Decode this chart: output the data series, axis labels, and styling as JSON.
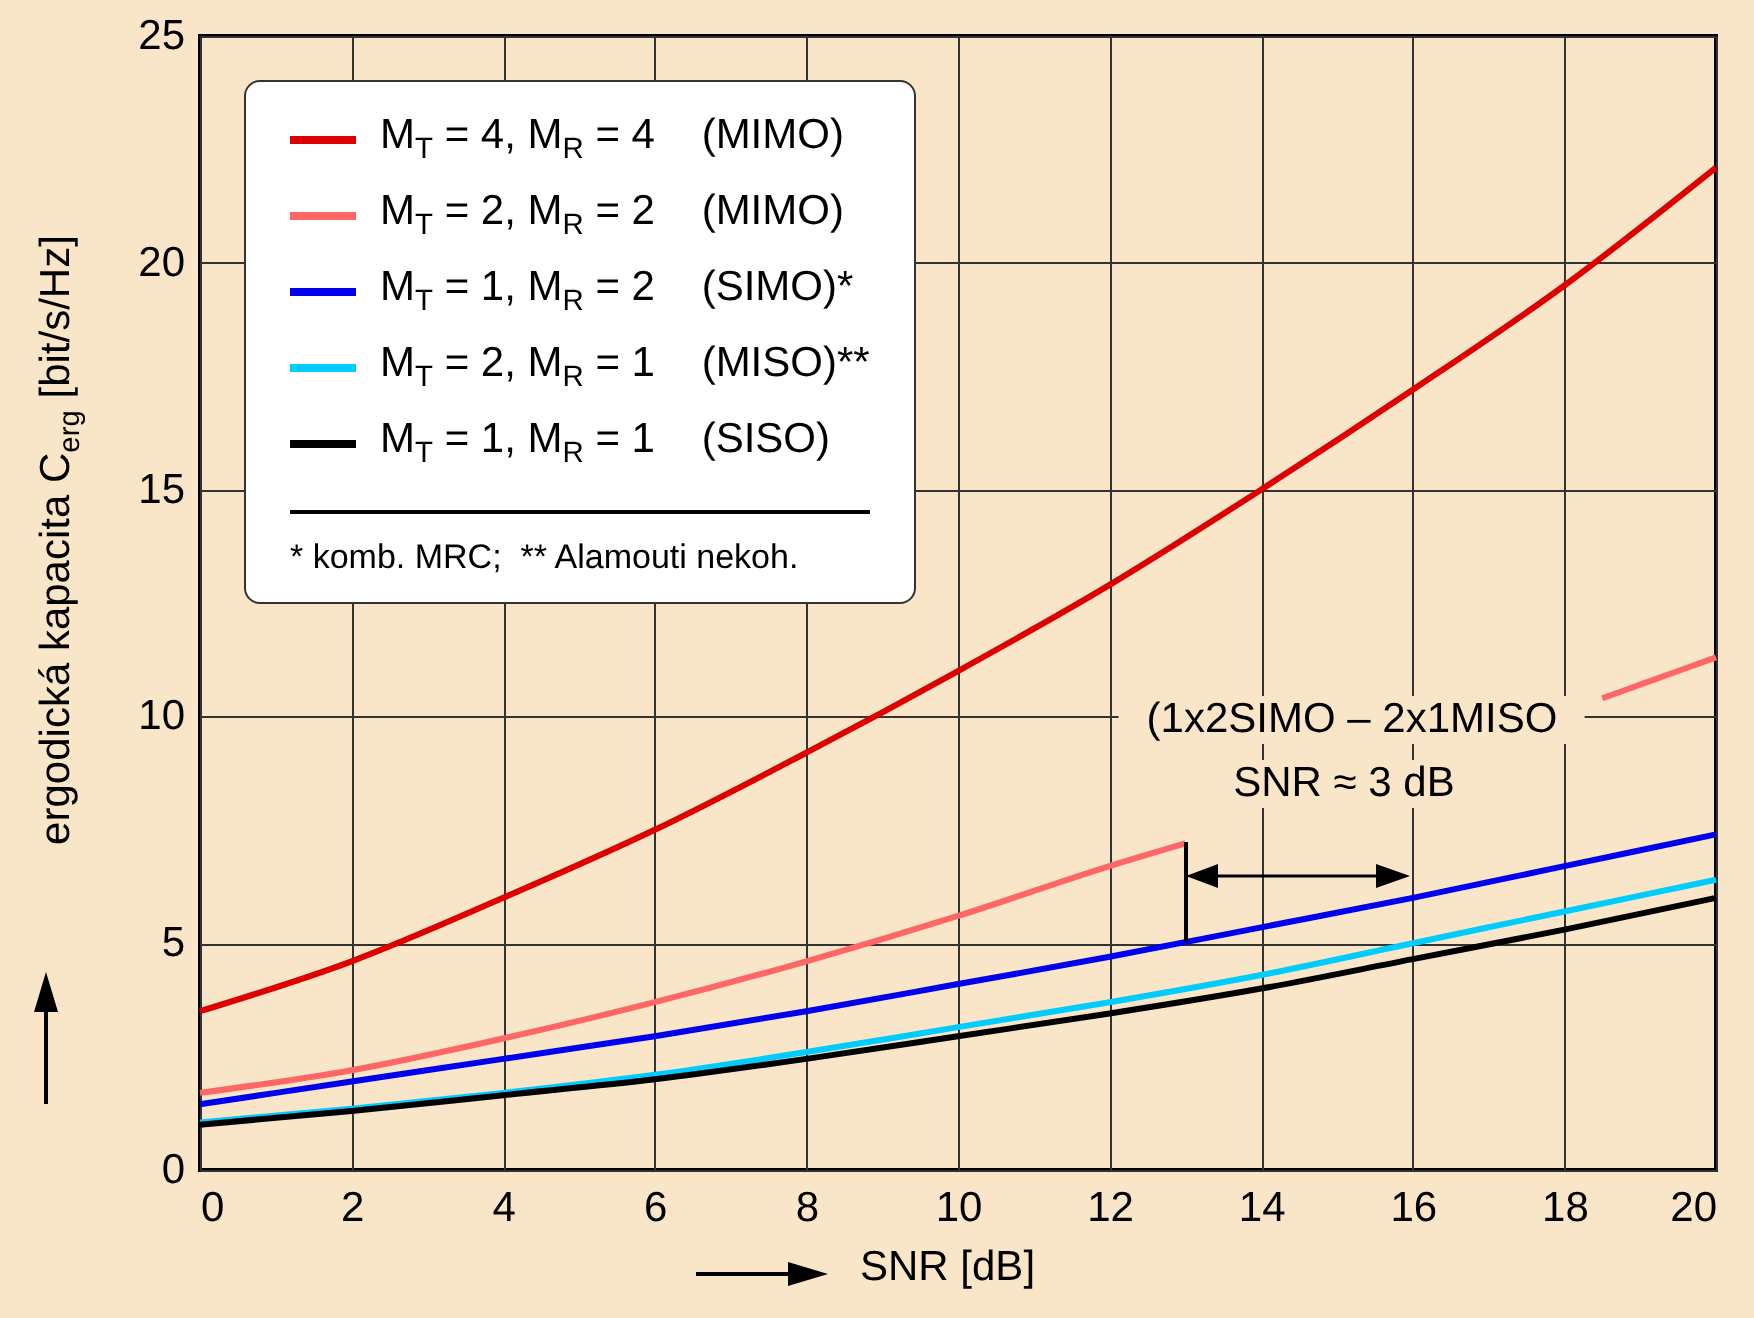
{
  "chart_data": {
    "type": "line",
    "xlabel": "SNR [dB]",
    "ylabel": "ergodická kapacita C$_{erg}$ [bit/s/Hz]",
    "xlim": [
      0,
      20
    ],
    "xticks": [
      0,
      2,
      4,
      6,
      8,
      10,
      12,
      14,
      16,
      18,
      20
    ],
    "ylim": [
      0,
      25
    ],
    "yticks": [
      0,
      5,
      10,
      15,
      20,
      25
    ],
    "grid": true,
    "legend": "top left",
    "x": [
      0,
      2,
      4,
      6,
      8,
      10,
      12,
      14,
      16,
      18,
      20
    ],
    "series": [
      {
        "name": "M$_{T}$ = 4, M$_{R}$ = 4    (MIMO)",
        "color": "#dd0000",
        "values": [
          3.5,
          4.6,
          6.0,
          7.5,
          9.2,
          11.0,
          12.9,
          15.0,
          17.2,
          19.5,
          22.1
        ]
      },
      {
        "name": "M$_{T}$ = 2, M$_{R}$ = 2    (MIMO)",
        "color": "#ff6666",
        "x": [
          0,
          2,
          4,
          6,
          8,
          10,
          12,
          13,
          14,
          18.5,
          19,
          20
        ],
        "values": [
          1.7,
          2.2,
          2.9,
          3.7,
          4.6,
          5.6,
          6.7,
          7.2,
          null,
          10.4,
          10.7,
          11.3
        ]
      },
      {
        "name": "M$_{T}$ = 1, M$_{R}$ = 2    (SIMO)*",
        "color": "#0000ee",
        "values": [
          1.45,
          1.95,
          2.45,
          2.95,
          3.5,
          4.1,
          4.7,
          5.35,
          6.0,
          6.7,
          7.4
        ]
      },
      {
        "name": "M$_{T}$ = 2, M$_{R}$ = 1    (MISO)**",
        "color": "#00ccff",
        "values": [
          1.05,
          1.35,
          1.7,
          2.1,
          2.6,
          3.15,
          3.7,
          4.3,
          5.0,
          5.7,
          6.4
        ]
      },
      {
        "name": "M$_{T}$ = 1, M$_{R}$ = 1    (SISO)",
        "color": "#000000",
        "values": [
          1.0,
          1.3,
          1.65,
          2.0,
          2.45,
          2.95,
          3.45,
          4.0,
          4.65,
          5.3,
          6.0
        ]
      }
    ],
    "annotations": [
      "* komb. MRC;  ** Alamouti nekoh.",
      "(1x2SIMO – 2x1MISO",
      "SNR ≈ 3 dB"
    ]
  }
}
